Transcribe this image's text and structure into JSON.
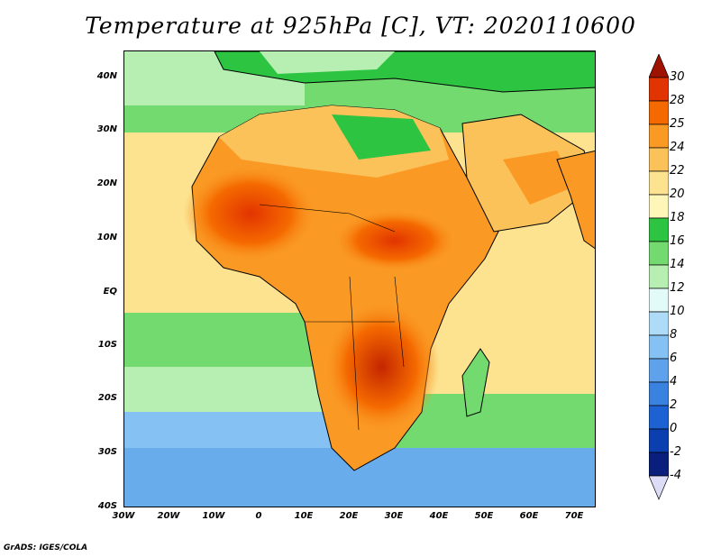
{
  "title": "Temperature at 925hPa [C], VT: 2020110600",
  "footer": "GrADS: IGES/COLA",
  "map": {
    "region": "Africa",
    "lon_range": [
      -30,
      75
    ],
    "lat_range": [
      -40,
      45
    ],
    "lat_labels": [
      "40N",
      "30N",
      "20N",
      "10N",
      "EQ",
      "10S",
      "20S",
      "30S",
      "40S"
    ],
    "lon_labels": [
      "30W",
      "20W",
      "10W",
      "0",
      "10E",
      "20E",
      "30E",
      "40E",
      "50E",
      "60E",
      "70E"
    ]
  },
  "colorbar": {
    "labels": [
      "30",
      "28",
      "25",
      "24",
      "22",
      "20",
      "18",
      "16",
      "14",
      "12",
      "10",
      "8",
      "6",
      "4",
      "2",
      "0",
      "-2",
      "-4"
    ],
    "colors": [
      "#a01200",
      "#e23400",
      "#f56a00",
      "#fa9a25",
      "#fcc25a",
      "#fde390",
      "#fef5b8",
      "#2dc441",
      "#73da70",
      "#b6efb1",
      "#e3fbf8",
      "#aedcf8",
      "#85c1f2",
      "#5da2ea",
      "#3a82e0",
      "#1c62d2",
      "#0b3fb0",
      "#0a1e7c",
      "#dcdcf6"
    ]
  }
}
